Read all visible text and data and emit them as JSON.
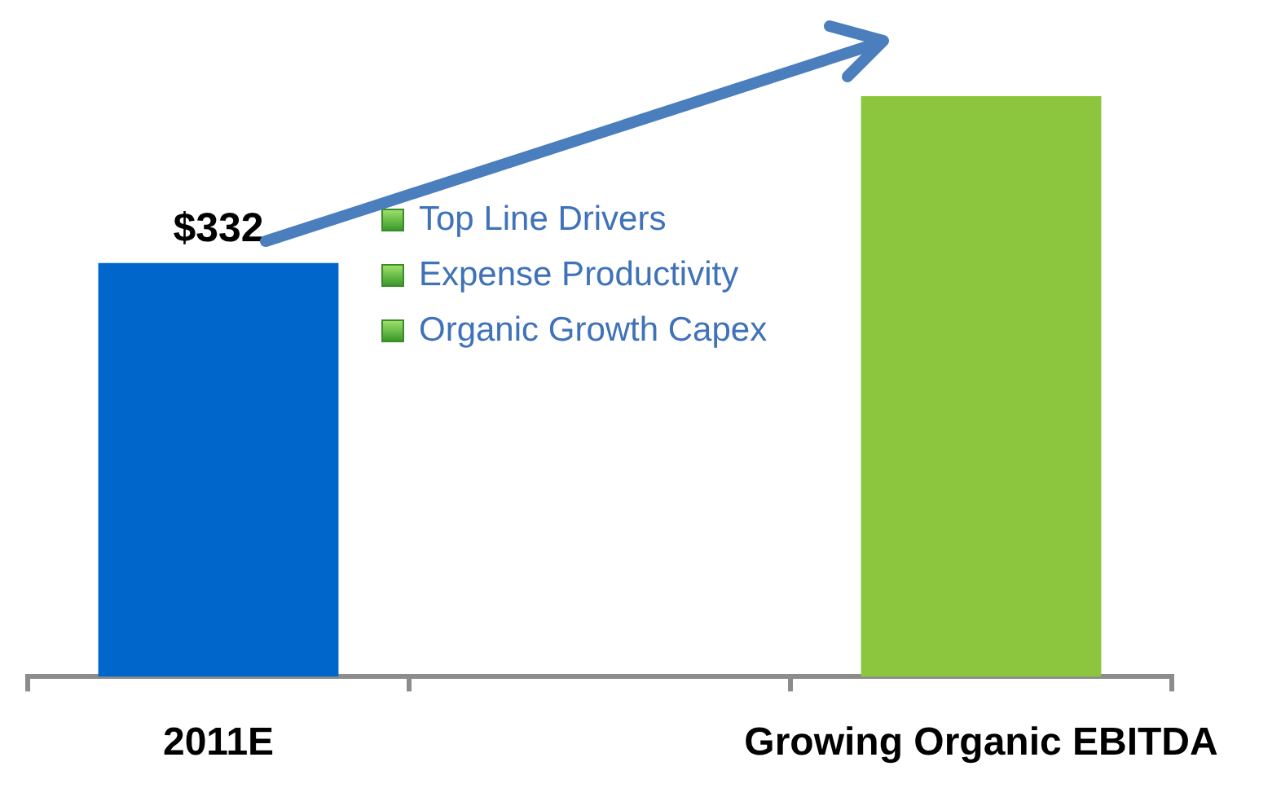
{
  "chart_data": {
    "type": "bar",
    "ylim": [
      0,
      466
    ],
    "tick_labels": "x",
    "categories": [
      "2011E",
      null,
      "Growing Organic EBITDA"
    ],
    "values": [
      332,
      null,
      466
    ],
    "colors": [
      "#0066cc",
      null,
      "#8cc63f"
    ],
    "value_labels": [
      "$332",
      null,
      null
    ],
    "annotations": [
      "Top Line Drivers",
      "Expense Productivity",
      "Organic Growth Capex"
    ],
    "grid": false,
    "legend": false
  }
}
